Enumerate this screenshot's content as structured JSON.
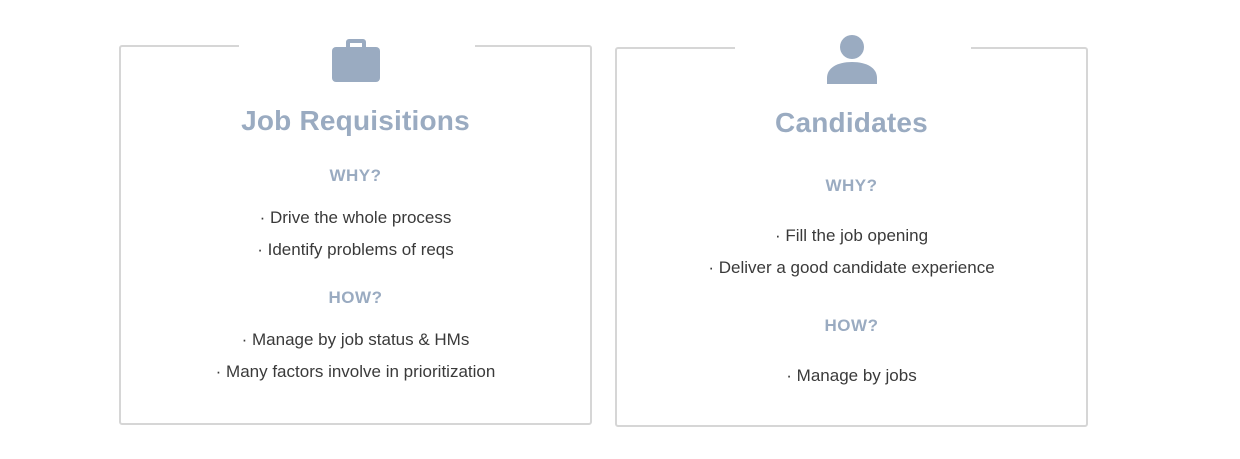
{
  "cards": [
    {
      "icon": "briefcase-icon",
      "title": "Job Requisitions",
      "why_label": "WHY?",
      "why_points": [
        "· Drive the whole process",
        "· Identify problems of reqs"
      ],
      "how_label": "HOW?",
      "how_points": [
        "· Manage by job status & HMs",
        "· Many factors involve in prioritization"
      ]
    },
    {
      "icon": "person-icon",
      "title": "Candidates",
      "why_label": "WHY?",
      "why_points": [
        "· Fill the job opening",
        "· Deliver a good candidate experience"
      ],
      "how_label": "HOW?",
      "how_points": [
        "· Manage by jobs"
      ]
    }
  ],
  "colors": {
    "accent": "#9aabc1",
    "text": "#3a3a3a",
    "border": "#d6d6d6"
  }
}
